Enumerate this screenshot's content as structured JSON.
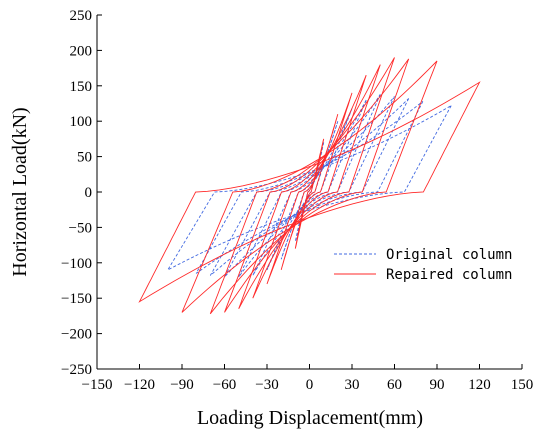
{
  "chart_data": {
    "type": "line",
    "title": "",
    "xlabel": "Loading Displacement(mm)",
    "ylabel": "Horizontal Load(kN)",
    "xlim": [
      -150,
      150
    ],
    "ylim": [
      -250,
      250
    ],
    "xticks": [
      -150,
      -120,
      -90,
      -60,
      -30,
      0,
      30,
      60,
      90,
      120,
      150
    ],
    "yticks": [
      -250,
      -200,
      -150,
      -100,
      -50,
      0,
      50,
      100,
      150,
      200,
      250
    ],
    "xtick_labels": [
      "−150",
      "−120",
      "−90",
      "−60",
      "−30",
      "0",
      "30",
      "60",
      "90",
      "120",
      "150"
    ],
    "ytick_labels": [
      "−250",
      "−200",
      "−150",
      "−100",
      "−50",
      "0",
      "50",
      "100",
      "150",
      "200",
      "250"
    ],
    "grid": false,
    "legend_position": "lower-right",
    "series": [
      {
        "name": "Original column",
        "color": "#4169e1",
        "line_style": "dashed",
        "cycles": [
          {
            "d_max": 10,
            "f_max": 70,
            "d_min": -10,
            "f_min": -70
          },
          {
            "d_max": 20,
            "f_max": 100,
            "d_min": -20,
            "f_min": -95
          },
          {
            "d_max": 30,
            "f_max": 118,
            "d_min": -30,
            "f_min": -110
          },
          {
            "d_max": 40,
            "f_max": 130,
            "d_min": -40,
            "f_min": -118
          },
          {
            "d_max": 50,
            "f_max": 138,
            "d_min": -50,
            "f_min": -120
          },
          {
            "d_max": 60,
            "f_max": 135,
            "d_min": -60,
            "f_min": -120
          },
          {
            "d_max": 70,
            "f_max": 132,
            "d_min": -70,
            "f_min": -118
          },
          {
            "d_max": 80,
            "f_max": 128,
            "d_min": -80,
            "f_min": -115
          },
          {
            "d_max": 100,
            "f_max": 122,
            "d_min": -100,
            "f_min": -110
          }
        ]
      },
      {
        "name": "Repaired column",
        "color": "#ff2a2a",
        "line_style": "solid",
        "cycles": [
          {
            "d_max": 10,
            "f_max": 75,
            "d_min": -10,
            "f_min": -80
          },
          {
            "d_max": 20,
            "f_max": 110,
            "d_min": -20,
            "f_min": -110
          },
          {
            "d_max": 30,
            "f_max": 140,
            "d_min": -30,
            "f_min": -130
          },
          {
            "d_max": 40,
            "f_max": 165,
            "d_min": -40,
            "f_min": -150
          },
          {
            "d_max": 50,
            "f_max": 180,
            "d_min": -50,
            "f_min": -165
          },
          {
            "d_max": 60,
            "f_max": 190,
            "d_min": -60,
            "f_min": -170
          },
          {
            "d_max": 70,
            "f_max": 188,
            "d_min": -70,
            "f_min": -172
          },
          {
            "d_max": 90,
            "f_max": 185,
            "d_min": -90,
            "f_min": -170
          },
          {
            "d_max": 120,
            "f_max": 155,
            "d_min": -120,
            "f_min": -155
          }
        ]
      }
    ]
  }
}
